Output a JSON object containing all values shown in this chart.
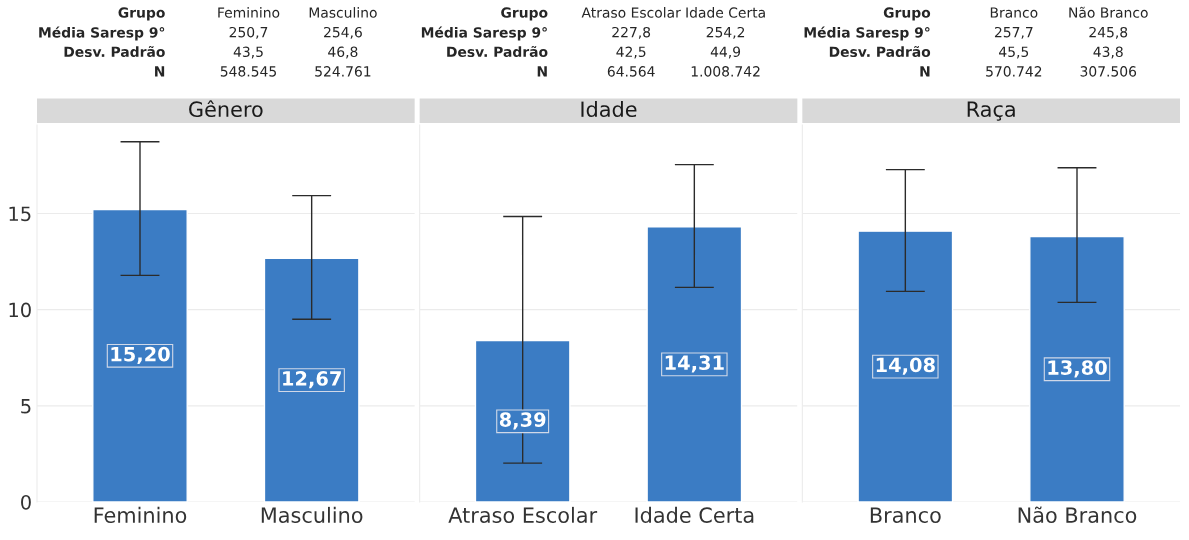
{
  "chart_data": [
    {
      "type": "bar",
      "title": "Gênero",
      "categories": [
        "Feminino",
        "Masculino"
      ],
      "values": [
        15.2,
        12.67
      ],
      "value_labels": [
        "15,20",
        "12,67"
      ],
      "errors": [
        [
          11.78,
          18.73
        ],
        [
          9.5,
          15.93
        ]
      ],
      "color": "#3b7cc4",
      "ylim": [
        0,
        19.6
      ],
      "yticks": [
        0,
        5,
        10,
        15
      ],
      "grid": "y",
      "annotations": [
        "Grupo",
        "Feminino",
        "Masculino",
        "Média Saresp 9°",
        "250,7",
        "254,6",
        "Desv. Padrão",
        "43,5",
        "46,8",
        "N",
        "548.545",
        "524.761"
      ]
    },
    {
      "type": "bar",
      "title": "Idade",
      "categories": [
        "Atraso Escolar",
        "Idade Certa"
      ],
      "values": [
        8.39,
        14.31
      ],
      "value_labels": [
        "8,39",
        "14,31"
      ],
      "errors": [
        [
          2.02,
          14.84
        ],
        [
          11.16,
          17.54
        ]
      ],
      "color": "#3b7cc4",
      "ylim": [
        0,
        19.6
      ],
      "yticks": [
        0,
        5,
        10,
        15
      ],
      "grid": "y",
      "tick_labels": "x",
      "annotations": [
        "Grupo",
        "Atraso Escolar",
        "Idade Certa",
        "Média Saresp 9°",
        "227,8",
        "254,2",
        "Desv. Padrão",
        "42,5",
        "44,9",
        "N",
        "64.564",
        "1.008.742"
      ]
    },
    {
      "type": "bar",
      "title": "Raça",
      "categories": [
        "Branco",
        "Não Branco"
      ],
      "values": [
        14.08,
        13.8
      ],
      "value_labels": [
        "14,08",
        "13,80"
      ],
      "errors": [
        [
          10.95,
          17.28
        ],
        [
          10.38,
          17.38
        ]
      ],
      "color": "#3b7cc4",
      "ylim": [
        0,
        19.6
      ],
      "yticks": [
        0,
        5,
        10,
        15
      ],
      "grid": "y",
      "tick_labels": "x",
      "annotations": [
        "Grupo",
        "Branco",
        "Não Branco",
        "Média Saresp 9°",
        "257,7",
        "245,8",
        "Desv. Padrão",
        "45,5",
        "43,8",
        "N",
        "570.742",
        "307.506"
      ]
    }
  ]
}
